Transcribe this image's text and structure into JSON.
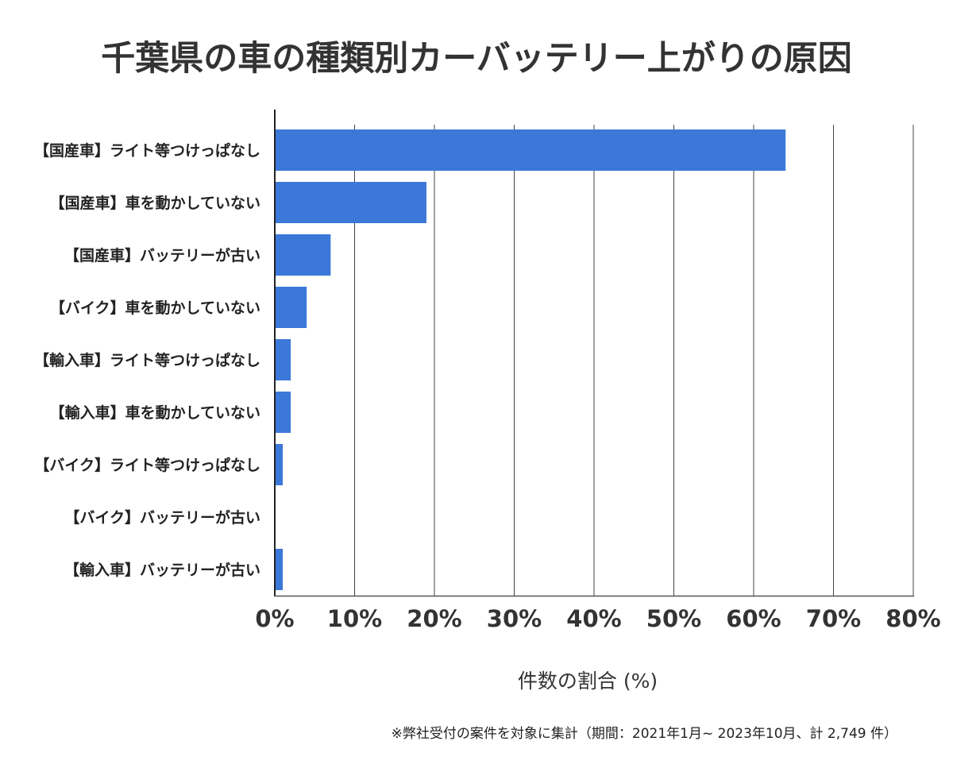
{
  "chart_data": {
    "type": "bar",
    "orientation": "horizontal",
    "title": "千葉県の車の種類別カーバッテリー上がりの原因",
    "xlabel": "件数の割合 (%)",
    "ylabel": "",
    "categories": [
      "【国産車】ライト等つけっぱなし",
      "【国産車】車を動かしていない",
      "【国産車】バッテリーが古い",
      "【バイク】車を動かしていない",
      "【輸入車】ライト等つけっぱなし",
      "【輸入車】車を動かしていない",
      "【バイク】ライト等つけっぱなし",
      "【バイク】バッテリーが古い",
      "【輸入車】バッテリーが古い"
    ],
    "values": [
      64,
      19,
      7,
      4,
      2,
      2,
      1,
      0,
      1
    ],
    "xlim": [
      0,
      80
    ],
    "xticks": [
      "0%",
      "10%",
      "20%",
      "30%",
      "40%",
      "50%",
      "60%",
      "70%",
      "80%"
    ],
    "grid": "vertical",
    "bar_color": "#3c78d8",
    "footnote": "※弊社受付の案件を対象に集計（期間：2021年1月~ 2023年10月、計 2,749 件）"
  }
}
